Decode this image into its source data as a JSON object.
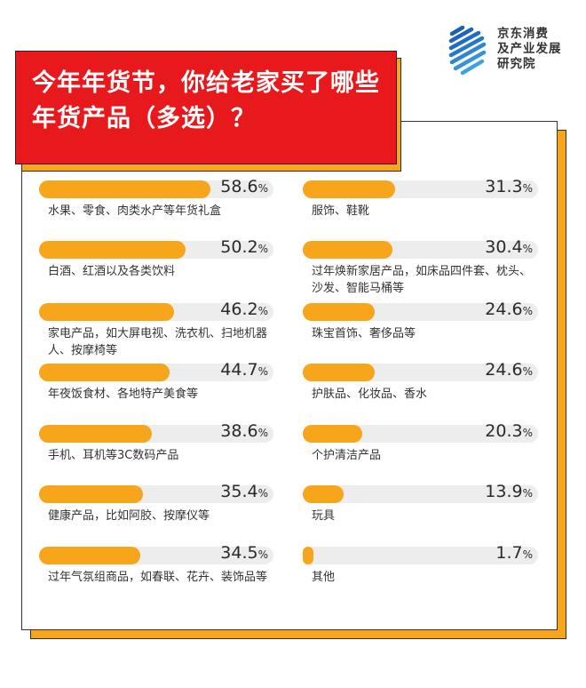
{
  "title": {
    "line1": "今年年货节，你给老家买了哪些",
    "line2": "年货产品（多选）？"
  },
  "logo": {
    "line1": "京东消费",
    "line2": "及产业发展",
    "line3": "研究院"
  },
  "colors": {
    "title_bg": "#e8191c",
    "accent": "#f7a51b",
    "track": "#ededed",
    "logo_blue": "#1f6fc1"
  },
  "left": [
    {
      "label": "水果、零食、肉类水产等年货礼盒",
      "value": "58.6",
      "pct": 58.6
    },
    {
      "label": "白酒、红酒以及各类饮料",
      "value": "50.2",
      "pct": 50.2
    },
    {
      "label": "家电产品，如大屏电视、洗衣机、扫地机器人、按摩椅等",
      "value": "46.2",
      "pct": 46.2
    },
    {
      "label": "年夜饭食材、各地特产美食等",
      "value": "44.7",
      "pct": 44.7
    },
    {
      "label": "手机、耳机等3C数码产品",
      "value": "38.6",
      "pct": 38.6
    },
    {
      "label": "健康产品，比如阿胶、按摩仪等",
      "value": "35.4",
      "pct": 35.4
    },
    {
      "label": "过年气氛组商品，如春联、花卉、装饰品等",
      "value": "34.5",
      "pct": 34.5
    }
  ],
  "right": [
    {
      "label": "服饰、鞋靴",
      "value": "31.3",
      "pct": 31.3
    },
    {
      "label": "过年焕新家居产品，如床品四件套、枕头、沙发、智能马桶等",
      "value": "30.4",
      "pct": 30.4
    },
    {
      "label": "珠宝首饰、奢侈品等",
      "value": "24.6",
      "pct": 24.6
    },
    {
      "label": "护肤品、化妆品、香水",
      "value": "24.6",
      "pct": 24.6
    },
    {
      "label": "个护清洁产品",
      "value": "20.3",
      "pct": 20.3
    },
    {
      "label": "玩具",
      "value": "13.9",
      "pct": 13.9
    },
    {
      "label": "其他",
      "value": "1.7",
      "pct": 1.7
    }
  ],
  "pct_sign": "%",
  "chart_data": {
    "type": "bar",
    "orientation": "horizontal",
    "title": "今年年货节，你给老家买了哪些年货产品（多选）？",
    "source": "京东消费及产业发展研究院",
    "unit": "%",
    "categories": [
      "水果、零食、肉类水产等年货礼盒",
      "白酒、红酒以及各类饮料",
      "家电产品，如大屏电视、洗衣机、扫地机器人、按摩椅等",
      "年夜饭食材、各地特产美食等",
      "手机、耳机等3C数码产品",
      "健康产品，比如阿胶、按摩仪等",
      "过年气氛组商品，如春联、花卉、装饰品等",
      "服饰、鞋靴",
      "过年焕新家居产品，如床品四件套、枕头、沙发、智能马桶等",
      "珠宝首饰、奢侈品等",
      "护肤品、化妆品、香水",
      "个护清洁产品",
      "玩具",
      "其他"
    ],
    "values": [
      58.6,
      50.2,
      46.2,
      44.7,
      38.6,
      35.4,
      34.5,
      31.3,
      30.4,
      24.6,
      24.6,
      20.3,
      13.9,
      1.7
    ],
    "xlim": [
      0,
      100
    ],
    "grid": false,
    "legend": null
  }
}
